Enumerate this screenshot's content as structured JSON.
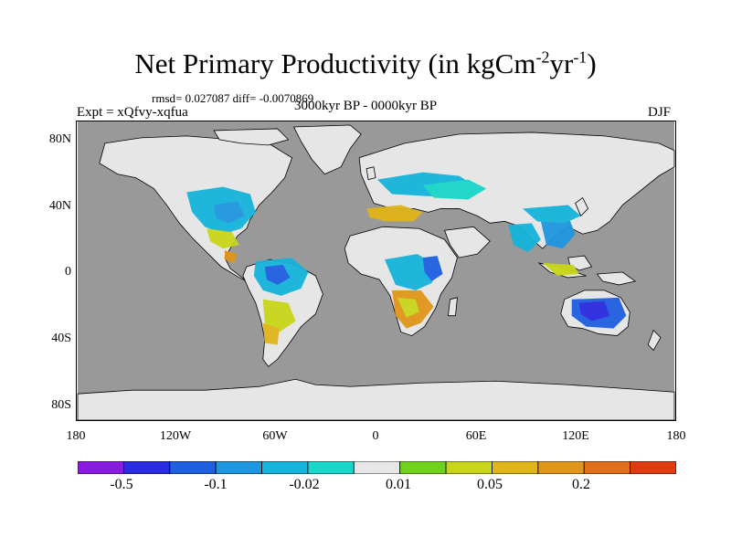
{
  "header": {
    "title_main": "Net Primary Productivity (in kgCm",
    "title_exp1": "-2",
    "title_mid": "yr",
    "title_exp2": "-1",
    "title_end": ")",
    "stats": "rmsd= 0.027087 diff= -0.0070869",
    "experiment": "Expt = xQfvy-xqfua",
    "period": "3000kyr BP - 0000kyr BP",
    "season": "DJF"
  },
  "axes": {
    "y_ticks": [
      "80N",
      "40N",
      "0",
      "40S",
      "80S"
    ],
    "x_ticks": [
      "180",
      "120W",
      "60W",
      "0",
      "60E",
      "120E",
      "180"
    ]
  },
  "colorbar": {
    "colors": [
      "#8a1be0",
      "#2a2ae0",
      "#1f5fe0",
      "#1f96e0",
      "#16b4dc",
      "#18d6c8",
      "#e6e6e6",
      "#6fd21c",
      "#c8d61a",
      "#e0b41a",
      "#e0961a",
      "#e06e1a",
      "#e03c12"
    ],
    "labels": [
      "-0.5",
      "-0.1",
      "-0.02",
      "0.01",
      "0.05",
      "0.2"
    ]
  },
  "map_colors": {
    "ocean": "#999999",
    "land": "#e6e6e6",
    "coast": "#000000"
  }
}
